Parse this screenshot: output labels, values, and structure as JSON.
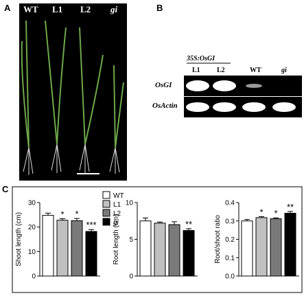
{
  "panels": {
    "a": {
      "letter": "A",
      "labels": [
        "WT",
        "L1",
        "L2",
        "gi"
      ]
    },
    "b": {
      "letter": "B",
      "construct": "35S:OsGI",
      "lanes": [
        "L1",
        "L2",
        "WT",
        "gi"
      ],
      "genes": [
        "OsGI",
        "OsActin"
      ]
    },
    "c": {
      "letter": "C"
    }
  },
  "legend": [
    {
      "name": "WT",
      "color": "#ffffff"
    },
    {
      "name": "L1",
      "color": "#c0c0c0"
    },
    {
      "name": "L2",
      "color": "#7a7a7a"
    },
    {
      "name": "gi",
      "color": "#000000"
    }
  ],
  "chart_data": [
    {
      "type": "bar",
      "ylabel": "Shoot length (cm)",
      "values": [
        24.8,
        22.8,
        22.6,
        18.2
      ],
      "errors": [
        0.9,
        0.6,
        0.9,
        0.8
      ],
      "annotations": [
        null,
        "*",
        "*",
        "***"
      ],
      "ylim": [
        0,
        30
      ],
      "yticks": [
        0,
        10,
        20,
        30
      ]
    },
    {
      "type": "bar",
      "ylabel": "Root length (cm)",
      "values": [
        7.5,
        7.2,
        7.0,
        6.2
      ],
      "errors": [
        0.4,
        0.15,
        0.4,
        0.25
      ],
      "annotations": [
        null,
        null,
        null,
        "**"
      ],
      "ylim": [
        0,
        10
      ],
      "yticks": [
        0,
        5,
        10
      ]
    },
    {
      "type": "bar",
      "ylabel": "Root/shoot ratio",
      "values": [
        0.3,
        0.318,
        0.312,
        0.342
      ],
      "errors": [
        0.008,
        0.006,
        0.005,
        0.01
      ],
      "annotations": [
        null,
        "*",
        "*",
        "**"
      ],
      "ylim": [
        0,
        0.4
      ],
      "yticks": [
        {
          "value": 0,
          "label": "0.0"
        },
        0.1,
        0.2,
        0.3,
        0.4
      ]
    }
  ]
}
